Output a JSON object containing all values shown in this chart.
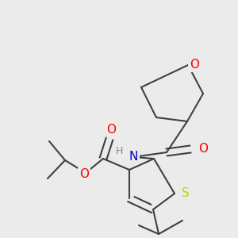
{
  "bg_color": "#ebebeb",
  "bond_color": "#404040",
  "bond_lw": 1.5,
  "atom_colors": {
    "O": "#ff0000",
    "N": "#0000cc",
    "S": "#cccc00",
    "H": "#888888",
    "C": "#404040"
  },
  "font_size": 10,
  "figsize": [
    3.0,
    3.0
  ],
  "dpi": 100
}
